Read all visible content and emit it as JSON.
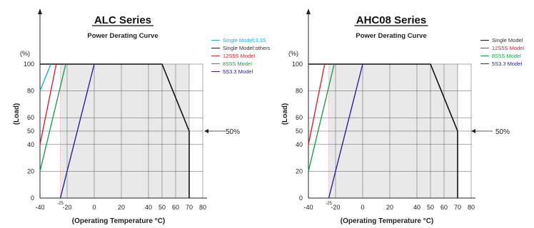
{
  "chart_data": [
    {
      "type": "line",
      "title": "ALC Series",
      "subtitle": "Power Derating Curve",
      "xlabel": "(Operating Temperature °C)",
      "ylabel": "(Load)",
      "yunit": "(%)",
      "xticks": [
        "-40",
        "-20",
        "0",
        "20",
        "40",
        "50",
        "60",
        "70",
        "80"
      ],
      "xminor": "-25",
      "yticks": [
        "0",
        "20",
        "40",
        "50",
        "60",
        "80",
        "100"
      ],
      "xlim": [
        -40,
        80
      ],
      "ylim": [
        0,
        100
      ],
      "grid": true,
      "legend_position": "top-right",
      "annotation": "50%",
      "annotation_y": 50,
      "derating": [
        [
          -40,
          100
        ],
        [
          50,
          100
        ],
        [
          70,
          50
        ],
        [
          70,
          0
        ]
      ],
      "series": [
        {
          "name": "Single Model:3.3S",
          "color": "#2aa6d6",
          "x": [
            -40,
            -32
          ],
          "y": [
            80,
            100
          ]
        },
        {
          "name": "Single Model:others",
          "color": "#111111",
          "x": [],
          "y": []
        },
        {
          "name": "12S5S Model",
          "color": "#d9232d",
          "x": [
            -40,
            -28
          ],
          "y": [
            40,
            100
          ]
        },
        {
          "name": "8S5S Model",
          "color": "#1e9e4a",
          "x": [
            -40,
            -21
          ],
          "y": [
            20,
            100
          ]
        },
        {
          "name": "5S3.3 Model",
          "color": "#27258f",
          "x": [
            -25,
            0
          ],
          "y": [
            0,
            100
          ]
        }
      ]
    },
    {
      "type": "line",
      "title": "AHC08 Series",
      "subtitle": "Power Derating Curve",
      "xlabel": "(Operating Temperature °C)",
      "ylabel": "(Load)",
      "yunit": "(%)",
      "xticks": [
        "-40",
        "-20",
        "0",
        "20",
        "40",
        "50",
        "60",
        "70",
        "80"
      ],
      "xminor": "-25",
      "yticks": [
        "0",
        "20",
        "40",
        "50",
        "60",
        "80",
        "100"
      ],
      "xlim": [
        -40,
        80
      ],
      "ylim": [
        0,
        100
      ],
      "grid": true,
      "legend_position": "top-right",
      "annotation": "50%",
      "annotation_y": 50,
      "derating": [
        [
          -40,
          100
        ],
        [
          50,
          100
        ],
        [
          70,
          50
        ],
        [
          70,
          0
        ]
      ],
      "series": [
        {
          "name": "Single Model",
          "color": "#111111",
          "x": [],
          "y": []
        },
        {
          "name": "12S5S Model",
          "color": "#d9232d",
          "x": [
            -40,
            -28
          ],
          "y": [
            40,
            100
          ]
        },
        {
          "name": "8S5S Model",
          "color": "#1e9e4a",
          "x": [
            -40,
            -21
          ],
          "y": [
            20,
            100
          ]
        },
        {
          "name": "5S3.3 Model",
          "color": "#27258f",
          "x": [
            -25,
            0
          ],
          "y": [
            0,
            100
          ]
        }
      ]
    }
  ]
}
